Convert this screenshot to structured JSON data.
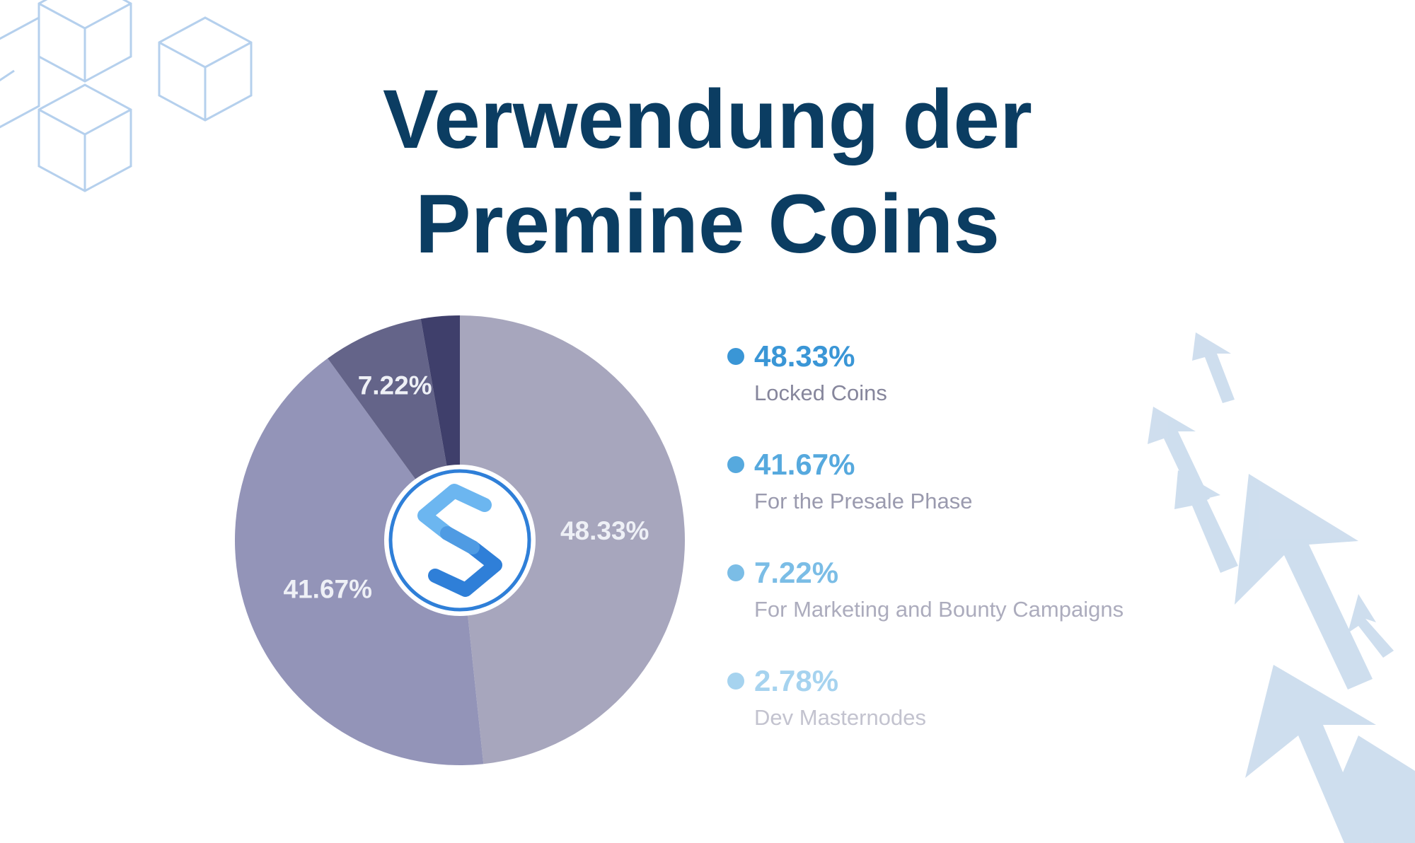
{
  "title": {
    "line1": "Verwendung der",
    "line2": "Premine Coins"
  },
  "colors": {
    "title": "#0b3d62",
    "slice_text": "#eef0f6",
    "logo_blue": "#2f7fd8",
    "logo_light": "#6cb6f0",
    "deco_cubes": "#a9c8ea",
    "deco_arrows": "#c3d6ea"
  },
  "decorations": [
    "hexagon-cube-pattern",
    "upward-arrows-pattern"
  ],
  "logo": {
    "name": "coin-logo-icon"
  },
  "chart_data": {
    "type": "pie",
    "title": "Verwendung der Premine Coins",
    "start_angle": "12 o'clock",
    "direction": "clockwise",
    "legend_position": "right",
    "center_logo": true,
    "slices": [
      {
        "label": "Locked Coins",
        "value": 48.33,
        "value_label": "48.33%",
        "slice_label": "48.33%",
        "slice_color": "#a7a6bd",
        "legend_color": "#3a96d6",
        "label_color": "#86869c"
      },
      {
        "label": "For the Presale Phase",
        "value": 41.67,
        "value_label": "41.67%",
        "slice_label": "41.67%",
        "slice_color": "#9394b8",
        "legend_color": "#56a9de",
        "label_color": "#9a9aae"
      },
      {
        "label": "For Marketing and Bounty Campaigns",
        "value": 7.22,
        "value_label": "7.22%",
        "slice_label": "7.22%",
        "slice_color": "#646489",
        "legend_color": "#7bbde6",
        "label_color": "#acacbd"
      },
      {
        "label": "Dev Masternodes",
        "value": 2.78,
        "value_label": "2.78%",
        "slice_label": "",
        "slice_color": "#3f3f6b",
        "legend_color": "#a6d3ef",
        "label_color": "#c3c3cf"
      }
    ]
  }
}
